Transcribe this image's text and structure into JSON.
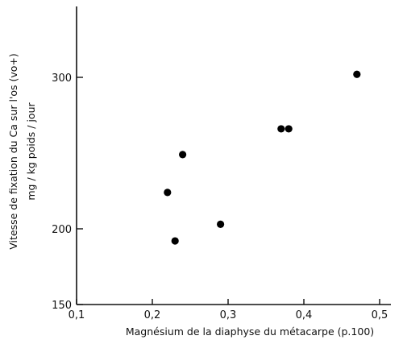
{
  "chart_data": {
    "type": "scatter",
    "title": "",
    "xlabel": "Magnésium de la diaphyse du métacarpe (p.100)",
    "ylabel_lines": [
      "Vitesse de fixation du Ca sur l'os (vo+)",
      "mg / kg poids / jour"
    ],
    "xlim": [
      0.1,
      0.52
    ],
    "ylim": [
      150,
      350
    ],
    "x_ticks": [
      {
        "value": 0.1,
        "label": "0,1"
      },
      {
        "value": 0.2,
        "label": "0,2"
      },
      {
        "value": 0.3,
        "label": "0,3"
      },
      {
        "value": 0.4,
        "label": "0,4"
      },
      {
        "value": 0.5,
        "label": "0,5"
      }
    ],
    "y_ticks": [
      {
        "value": 150,
        "label": "150"
      },
      {
        "value": 200,
        "label": "200"
      },
      {
        "value": 300,
        "label": "300"
      }
    ],
    "grid": false,
    "series": [
      {
        "marker_color": "#000000",
        "points": [
          {
            "x": 0.22,
            "y": 224
          },
          {
            "x": 0.23,
            "y": 192
          },
          {
            "x": 0.24,
            "y": 249
          },
          {
            "x": 0.29,
            "y": 203
          },
          {
            "x": 0.37,
            "y": 266
          },
          {
            "x": 0.38,
            "y": 266
          },
          {
            "x": 0.47,
            "y": 302
          }
        ]
      }
    ]
  }
}
